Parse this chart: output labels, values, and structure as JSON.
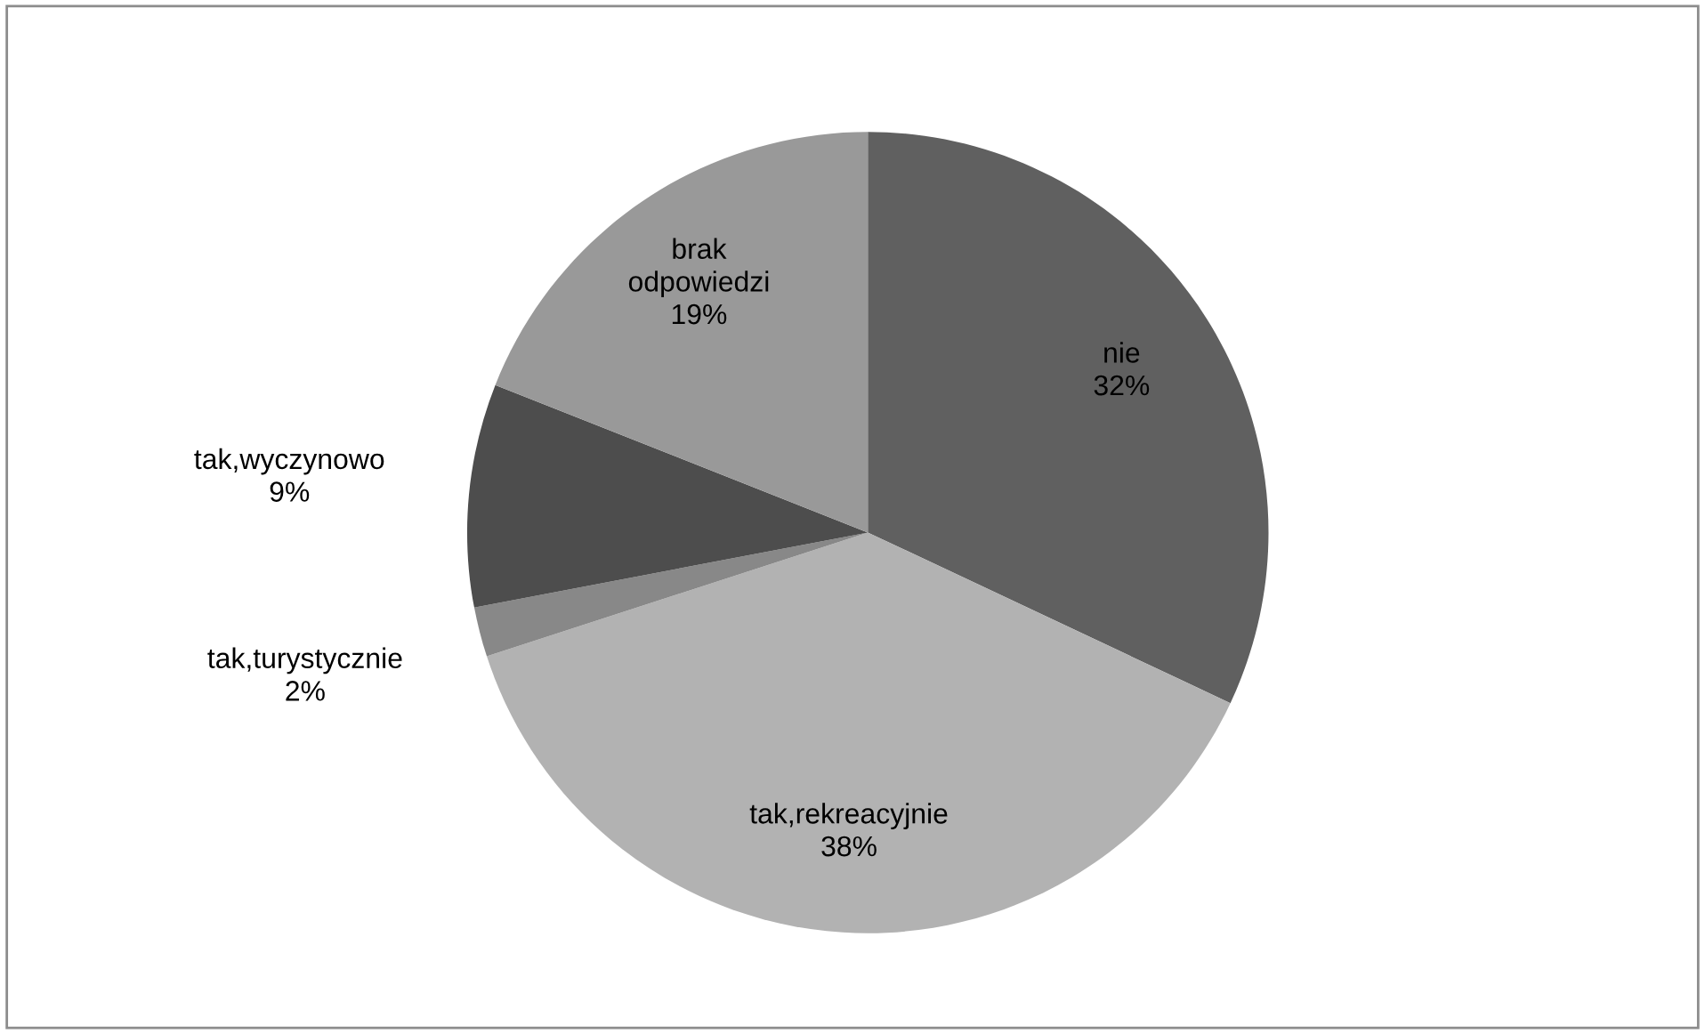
{
  "chart_data": {
    "type": "pie",
    "categories": [
      "nie",
      "tak,rekreacyjnie",
      "tak,turystycznie",
      "tak,wyczynowo",
      "brak\nodpowiedzi"
    ],
    "values": [
      32,
      38,
      2,
      9,
      19
    ],
    "value_labels": [
      "32%",
      "38%",
      "2%",
      "9%",
      "19%"
    ],
    "colors": [
      "#606060",
      "#b2b2b2",
      "#888888",
      "#4d4d4d",
      "#999999"
    ],
    "legend": false
  }
}
